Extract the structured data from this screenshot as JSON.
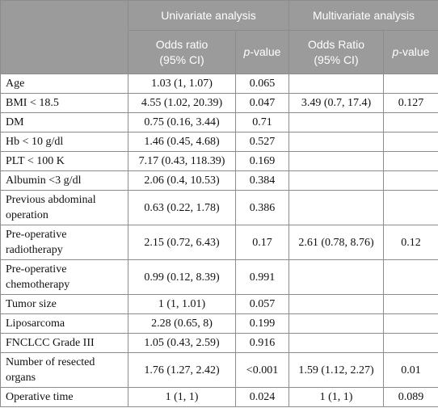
{
  "header": {
    "univariate": "Univariate analysis",
    "multivariate": "Multivariate analysis",
    "odds_ratio_uni": "Odds ratio",
    "odds_ratio_multi": "Odds Ratio",
    "ci": "(95% CI)",
    "p_italic": "p",
    "p_suffix": "-value"
  },
  "rows": [
    {
      "variable": "Age",
      "uni_or": "1.03 (1, 1.07)",
      "uni_p": "0.065",
      "multi_or": "",
      "multi_p": ""
    },
    {
      "variable": "BMI < 18.5",
      "uni_or": "4.55 (1.02, 20.39)",
      "uni_p": "0.047",
      "multi_or": "3.49 (0.7, 17.4)",
      "multi_p": "0.127"
    },
    {
      "variable": "DM",
      "uni_or": "0.75 (0.16, 3.44)",
      "uni_p": "0.71",
      "multi_or": "",
      "multi_p": ""
    },
    {
      "variable": "Hb < 10 g/dl",
      "uni_or": "1.46 (0.45, 4.68)",
      "uni_p": "0.527",
      "multi_or": "",
      "multi_p": ""
    },
    {
      "variable": "PLT < 100 K",
      "uni_or": "7.17 (0.43, 118.39)",
      "uni_p": "0.169",
      "multi_or": "",
      "multi_p": ""
    },
    {
      "variable": "Albumin <3 g/dl",
      "uni_or": "2.06 (0.4, 10.53)",
      "uni_p": "0.384",
      "multi_or": "",
      "multi_p": ""
    },
    {
      "variable": "Previous abdominal operation",
      "uni_or": "0.63 (0.22, 1.78)",
      "uni_p": "0.386",
      "multi_or": "",
      "multi_p": ""
    },
    {
      "variable": "Pre-operative radiotherapy",
      "uni_or": "2.15 (0.72, 6.43)",
      "uni_p": "0.17",
      "multi_or": "2.61 (0.78, 8.76)",
      "multi_p": "0.12"
    },
    {
      "variable": "Pre-operative chemotherapy",
      "uni_or": "0.99 (0.12, 8.39)",
      "uni_p": "0.991",
      "multi_or": "",
      "multi_p": ""
    },
    {
      "variable": "Tumor size",
      "uni_or": "1 (1, 1.01)",
      "uni_p": "0.057",
      "multi_or": "",
      "multi_p": ""
    },
    {
      "variable": "Liposarcoma",
      "uni_or": "2.28 (0.65, 8)",
      "uni_p": "0.199",
      "multi_or": "",
      "multi_p": ""
    },
    {
      "variable": "FNCLCC Grade III",
      "uni_or": "1.05 (0.43, 2.59)",
      "uni_p": "0.916",
      "multi_or": "",
      "multi_p": ""
    },
    {
      "variable": "Number of resected organs",
      "uni_or": "1.76 (1.27, 2.42)",
      "uni_p": "<0.001",
      "multi_or": "1.59 (1.12, 2.27)",
      "multi_p": "0.01"
    },
    {
      "variable": "Operative time",
      "uni_or": "1 (1, 1)",
      "uni_p": "0.024",
      "multi_or": "1 (1, 1)",
      "multi_p": "0.089"
    }
  ]
}
